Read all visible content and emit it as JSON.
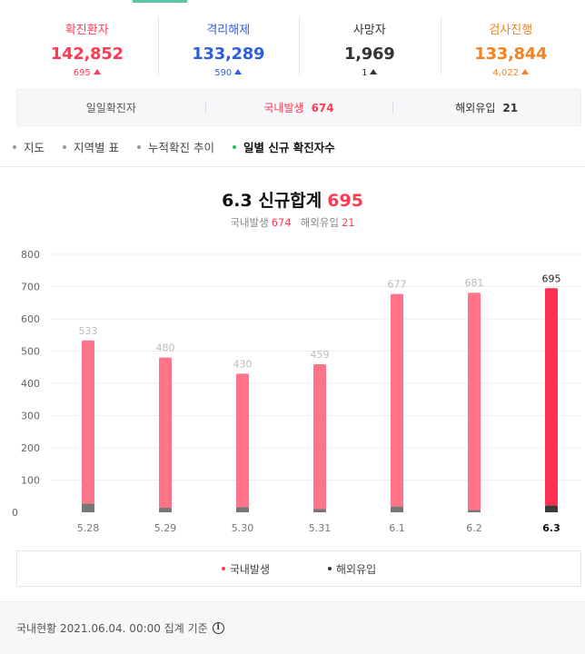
{
  "stats": [
    {
      "label": "확진환자",
      "value": "142,852",
      "delta": "695",
      "color": "#ff3b54"
    },
    {
      "label": "격리해제",
      "value": "133,289",
      "delta": "590",
      "color": "#2d5fdb"
    },
    {
      "label": "사망자",
      "value": "1,969",
      "delta": "1",
      "color": "#333333"
    },
    {
      "label": "검사진행",
      "value": "133,844",
      "delta": "4,022",
      "color": "#f5821f"
    }
  ],
  "summary": {
    "daily_label": "일일확진자",
    "domestic_label": "국내발생",
    "domestic_value": "674",
    "overseas_label": "해외유입",
    "overseas_value": "21"
  },
  "tabs": [
    {
      "label": "지도",
      "active": false
    },
    {
      "label": "지역별 표",
      "active": false
    },
    {
      "label": "누적확진 추이",
      "active": false
    },
    {
      "label": "일별 신규 확진자수",
      "active": true
    }
  ],
  "chart_header": {
    "title_prefix": "6.3 신규합계",
    "title_value": "695",
    "domestic_label": "국내발생",
    "domestic_value": "674",
    "overseas_label": "해외유입",
    "overseas_value": "21"
  },
  "chart_data": {
    "type": "bar",
    "categories": [
      "5.28",
      "5.29",
      "5.30",
      "5.31",
      "6.1",
      "6.2",
      "6.3"
    ],
    "series": [
      {
        "name": "국내발생",
        "values": [
          506,
          466,
          414,
          449,
          659,
          674,
          674
        ]
      },
      {
        "name": "해외유입",
        "values": [
          27,
          14,
          16,
          10,
          18,
          7,
          21
        ]
      }
    ],
    "totals": [
      533,
      480,
      430,
      459,
      677,
      681,
      695
    ],
    "ylim": [
      0,
      800
    ],
    "yticks": [
      0,
      100,
      200,
      300,
      400,
      500,
      600,
      700,
      800
    ],
    "highlight_index": 6,
    "colors": {
      "domestic": "#ff7488",
      "overseas": "#777777",
      "domestic_highlight": "#ff3150",
      "overseas_highlight": "#3a3a3a",
      "label": "#bbbbbb",
      "label_highlight": "#222222"
    }
  },
  "legend": [
    {
      "label": "국내발생",
      "color": "#ff3b54"
    },
    {
      "label": "해외유입",
      "color": "#333333"
    }
  ],
  "footer": {
    "text": "국내현황 2021.06.04. 00:00 집계 기준",
    "info_icon": "i"
  }
}
